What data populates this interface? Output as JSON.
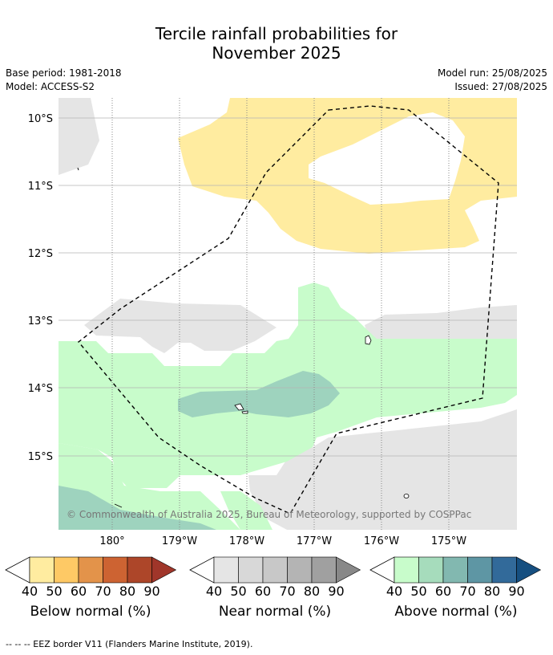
{
  "title_line1": "Tercile rainfall probabilities for",
  "title_line2": "November 2025",
  "base_period": "Base period: 1981-2018",
  "model": "Model: ACCESS-S2",
  "model_run": "Model run: 25/08/2025",
  "issued": "Issued: 27/08/2025",
  "copyright": "© Commonwealth of Australia 2025, Bureau of Meteorology, supported by COSPPac",
  "lat_labels": [
    "10°S",
    "11°S",
    "12°S",
    "13°S",
    "14°S",
    "15°S"
  ],
  "lon_labels": [
    "180°",
    "179°W",
    "178°W",
    "177°W",
    "176°W",
    "175°W"
  ],
  "colorbars": [
    {
      "label": "Below normal (%)",
      "ticks": [
        "40",
        "50",
        "60",
        "70",
        "80",
        "90"
      ],
      "colors": [
        "#ffeca0",
        "#fec965",
        "#e3934a",
        "#cd6332",
        "#ad4629",
        "#a0362a"
      ]
    },
    {
      "label": "Near normal (%)",
      "ticks": [
        "40",
        "50",
        "60",
        "70",
        "80",
        "90"
      ],
      "colors": [
        "#e5e5e5",
        "#d8d8d8",
        "#c8c8c8",
        "#b4b4b4",
        "#a0a0a0",
        "#888888"
      ]
    },
    {
      "label": "Above normal (%)",
      "ticks": [
        "40",
        "50",
        "60",
        "70",
        "80",
        "90"
      ],
      "colors": [
        "#c8fccb",
        "#a6dcbc",
        "#82b8b0",
        "#5e96a4",
        "#326a9a",
        "#164f80"
      ]
    }
  ],
  "footnote": "--  --  -- EEZ border V11 (Flanders Marine Institute, 2019).",
  "legend_colors": {
    "below_40": "#ffeca0",
    "near_40": "#e5e5e5",
    "above_40": "#c8fccb",
    "above_60": "#9ed3be"
  }
}
